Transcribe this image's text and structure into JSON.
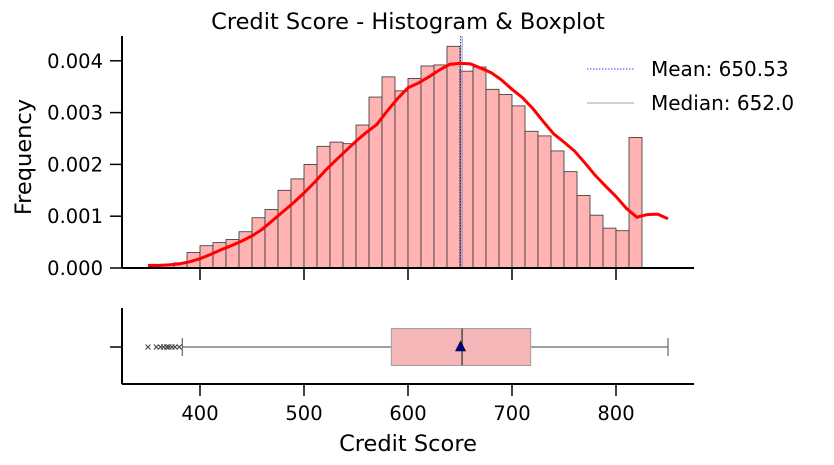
{
  "chart_data": [
    {
      "type": "bar",
      "subtype": "histogram_with_kde",
      "title": "Credit Score - Histogram & Boxplot",
      "xlabel": "",
      "ylabel": "Frequency",
      "xlim": [
        325,
        875
      ],
      "ylim": [
        0,
        0.0045
      ],
      "yticks": [
        0.0,
        0.001,
        0.002,
        0.003,
        0.004
      ],
      "ytick_labels": [
        "0.000",
        "0.001",
        "0.002",
        "0.003",
        "0.004"
      ],
      "xticks": [
        400,
        500,
        600,
        700,
        800
      ],
      "bin_start": 350,
      "bin_width": 12.5,
      "values": [
        2e-05,
        6e-05,
        0.0001,
        0.0003,
        0.00043,
        0.00049,
        0.00055,
        0.0007,
        0.00097,
        0.00113,
        0.0015,
        0.00172,
        0.002,
        0.00235,
        0.00243,
        0.0024,
        0.00276,
        0.0033,
        0.00369,
        0.00342,
        0.00366,
        0.0039,
        0.00392,
        0.00428,
        0.0038,
        0.00388,
        0.00345,
        0.00335,
        0.00313,
        0.00264,
        0.00255,
        0.00226,
        0.00186,
        0.0014,
        0.00102,
        0.00077,
        0.00072,
        0.00252
      ],
      "kde": {
        "x": [
          350,
          360,
          370,
          380,
          390,
          400,
          410,
          420,
          430,
          440,
          450,
          460,
          470,
          480,
          490,
          500,
          510,
          520,
          530,
          540,
          550,
          560,
          570,
          580,
          590,
          600,
          610,
          620,
          630,
          640,
          650,
          660,
          670,
          680,
          690,
          700,
          710,
          720,
          730,
          740,
          750,
          760,
          770,
          780,
          790,
          800,
          810,
          820,
          830,
          840,
          850
        ],
        "y": [
          5e-05,
          5e-05,
          6e-05,
          8e-05,
          0.00012,
          0.00018,
          0.00026,
          0.00035,
          0.00043,
          0.00052,
          0.00062,
          0.00075,
          0.00092,
          0.00109,
          0.00126,
          0.00145,
          0.00165,
          0.00187,
          0.00207,
          0.00226,
          0.00245,
          0.00262,
          0.00277,
          0.00303,
          0.00327,
          0.00348,
          0.00357,
          0.00369,
          0.00382,
          0.00393,
          0.00395,
          0.00394,
          0.00386,
          0.00377,
          0.00363,
          0.00345,
          0.00329,
          0.00308,
          0.00283,
          0.00259,
          0.00243,
          0.00226,
          0.00203,
          0.00179,
          0.00158,
          0.00138,
          0.00115,
          0.00098,
          0.00103,
          0.00104,
          0.00095
        ]
      },
      "lines": [
        {
          "name": "Mean: 650.53",
          "x": 650.53,
          "color": "#0000ff",
          "style": "dotted"
        },
        {
          "name": "Median: 652.0",
          "x": 652.0,
          "color": "#808080",
          "style": "solid"
        }
      ],
      "legend_position": "top-right",
      "colors": {
        "bar_fill": "#ffb3b3",
        "bar_edge": "#333333",
        "kde": "#ff0000"
      }
    },
    {
      "type": "boxplot",
      "xlabel": "Credit Score",
      "xticks": [
        400,
        500,
        600,
        700,
        800
      ],
      "xlim": [
        325,
        875
      ],
      "whisker_low": 383,
      "q1": 584,
      "median": 652,
      "mean": 650.53,
      "q3": 718,
      "whisker_high": 850,
      "outliers": [
        350,
        358,
        362,
        365,
        368,
        370,
        373,
        376,
        380
      ],
      "colors": {
        "box_fill": "#f4b6b6",
        "box_edge": "#a0a0a0",
        "mean_marker": "#00008b"
      }
    }
  ]
}
